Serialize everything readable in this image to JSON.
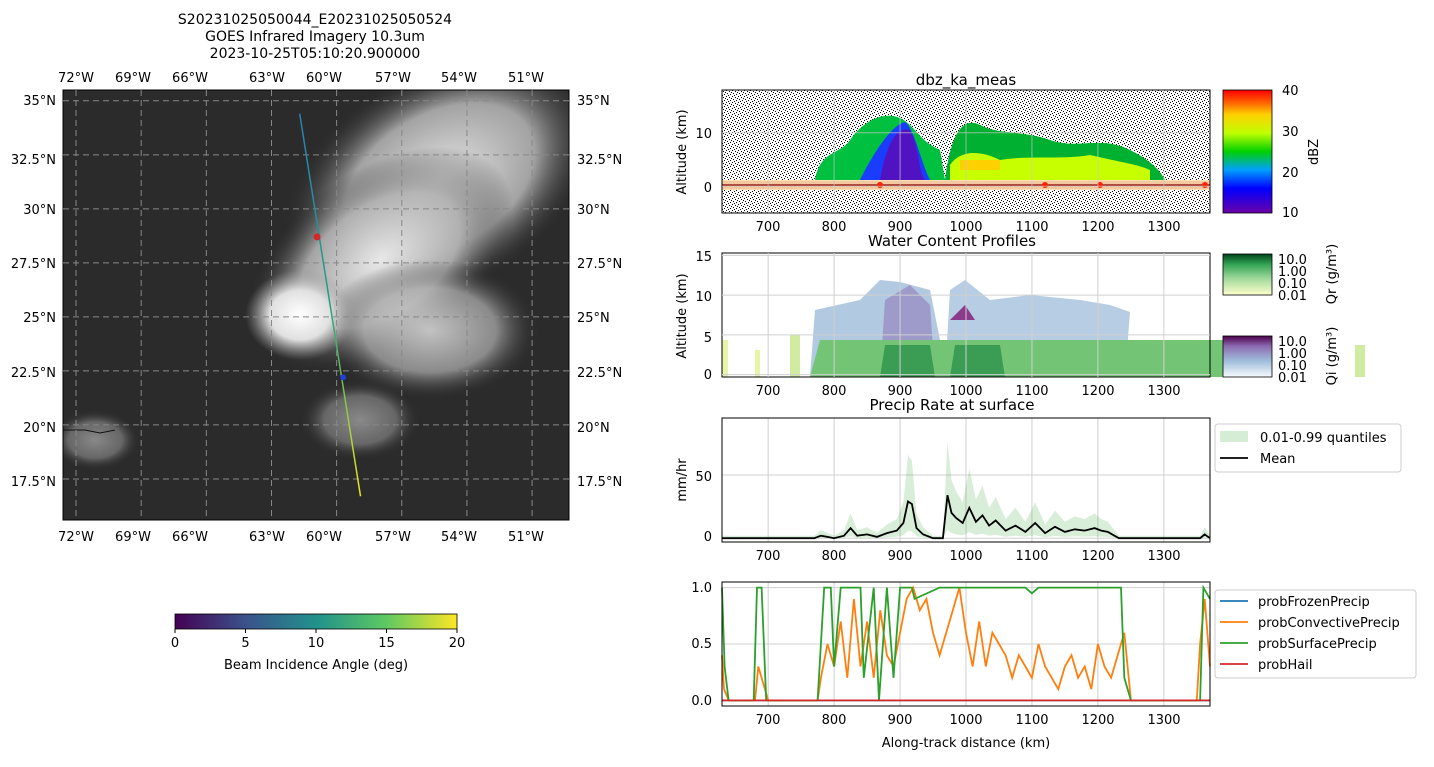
{
  "map": {
    "title_lines": [
      "S20231025050044_E20231025050524",
      "GOES Infrared Imagery 10.3um",
      "2023-10-25T05:10:20.900000"
    ],
    "lon_labels": [
      "72°W",
      "69°W",
      "66°W",
      "63°W",
      "60°W",
      "57°W",
      "54°W",
      "51°W"
    ],
    "lat_labels": [
      "35°N",
      "32.5°N",
      "30°N",
      "27.5°N",
      "25°N",
      "22.5°N",
      "20°N",
      "17.5°N"
    ],
    "colorbar_label": "Beam Incidence Angle (deg)",
    "colorbar_ticks": [
      "0",
      "5",
      "10",
      "15",
      "20"
    ],
    "track": {
      "start": {
        "lon": -61.7,
        "lat": 34.4
      },
      "end": {
        "lon": -58.9,
        "lat": 16.7
      }
    },
    "markers": [
      {
        "lon": -60.9,
        "lat": 28.7,
        "color": "#d62728"
      },
      {
        "lon": -59.7,
        "lat": 22.2,
        "color": "#1f3fd6"
      }
    ]
  },
  "chart_data": [
    {
      "type": "heatmap",
      "title": "dbz_ka_meas",
      "ylabel": "Altitude (km)",
      "xlim": [
        630,
        1370
      ],
      "ylim": [
        -5,
        18
      ],
      "xticks": [
        "700",
        "800",
        "900",
        "1000",
        "1100",
        "1200",
        "1300"
      ],
      "yticks": [
        "0",
        "10"
      ],
      "colorbar": {
        "label": "dBZ",
        "ticks": [
          "10",
          "20",
          "30",
          "40"
        ],
        "range": [
          10,
          40
        ]
      }
    },
    {
      "type": "heatmap",
      "title": "Water Content Profiles",
      "ylabel": "Altitude (km)",
      "xlim": [
        630,
        1370
      ],
      "ylim": [
        -0.3,
        15.3
      ],
      "xticks": [
        "700",
        "800",
        "900",
        "1000",
        "1100",
        "1200",
        "1300"
      ],
      "yticks": [
        "0",
        "5",
        "10",
        "15"
      ],
      "colorbars": [
        {
          "label": "Qr (g/m³)",
          "ticks": [
            "10.0",
            "1.00",
            "0.10",
            "0.01"
          ]
        },
        {
          "label": "Qi (g/m³)",
          "ticks": [
            "10.0",
            "1.00",
            "0.10",
            "0.01"
          ]
        }
      ]
    },
    {
      "type": "line",
      "title": "Precip Rate at surface",
      "ylabel": "mm/hr",
      "xlim": [
        630,
        1370
      ],
      "ylim": [
        -3,
        95
      ],
      "xticks": [
        "700",
        "800",
        "900",
        "1000",
        "1100",
        "1200",
        "1300"
      ],
      "yticks": [
        "0",
        "50"
      ],
      "legend": [
        "0.01-0.99 quantiles",
        "Mean"
      ],
      "series": [
        {
          "name": "Mean",
          "x": [
            630,
            700,
            770,
            780,
            790,
            800,
            815,
            825,
            835,
            850,
            865,
            880,
            895,
            905,
            912,
            918,
            925,
            935,
            950,
            965,
            972,
            978,
            985,
            995,
            1005,
            1015,
            1025,
            1035,
            1045,
            1060,
            1075,
            1090,
            1105,
            1120,
            1135,
            1150,
            1165,
            1180,
            1195,
            1205,
            1215,
            1225,
            1232,
            1240,
            1300,
            1355,
            1362,
            1370
          ],
          "y": [
            0,
            0,
            0,
            2,
            1,
            0,
            2,
            8,
            2,
            3,
            1,
            4,
            6,
            12,
            29,
            27,
            8,
            3,
            0,
            0,
            34,
            20,
            16,
            12,
            24,
            13,
            18,
            10,
            14,
            6,
            10,
            5,
            12,
            4,
            9,
            5,
            7,
            6,
            8,
            6,
            5,
            2,
            0,
            0,
            0,
            0,
            3,
            0
          ]
        }
      ]
    },
    {
      "type": "line",
      "xlabel": "Along-track distance (km)",
      "xlim": [
        630,
        1370
      ],
      "ylim": [
        -0.05,
        1.05
      ],
      "xticks": [
        "700",
        "800",
        "900",
        "1000",
        "1100",
        "1200",
        "1300"
      ],
      "yticks": [
        "0.0",
        "0.5",
        "1.0"
      ],
      "legend": [
        "probFrozenPrecip",
        "probConvectivePrecip",
        "probSurfacePrecip",
        "probHail"
      ],
      "series": [
        {
          "name": "probFrozenPrecip",
          "x": [
            630,
            1370
          ],
          "y": [
            0,
            0
          ]
        },
        {
          "name": "probConvectivePrecip",
          "x": [
            630,
            633,
            640,
            680,
            685,
            700,
            775,
            780,
            790,
            800,
            810,
            820,
            830,
            840,
            850,
            860,
            870,
            880,
            890,
            900,
            910,
            920,
            930,
            940,
            950,
            960,
            970,
            980,
            990,
            1000,
            1010,
            1020,
            1030,
            1040,
            1050,
            1060,
            1070,
            1080,
            1090,
            1100,
            1110,
            1120,
            1130,
            1140,
            1150,
            1160,
            1170,
            1180,
            1190,
            1200,
            1210,
            1220,
            1230,
            1240,
            1250,
            1260,
            1350,
            1355,
            1362,
            1370
          ],
          "y": [
            0.4,
            0.1,
            0,
            0,
            0.3,
            0,
            0,
            0.2,
            0.5,
            0.3,
            0.7,
            0.2,
            0.9,
            0.3,
            0.7,
            0.2,
            0.8,
            0.4,
            0.3,
            0.6,
            0.9,
            1.0,
            0.8,
            0.9,
            0.6,
            0.4,
            0.6,
            0.8,
            1.0,
            0.6,
            0.3,
            0.7,
            0.3,
            0.6,
            0.5,
            0.4,
            0.2,
            0.4,
            0.3,
            0.2,
            0.5,
            0.3,
            0.2,
            0.1,
            0.3,
            0.4,
            0.2,
            0.3,
            0.1,
            0.5,
            0.3,
            0.2,
            0.4,
            0.6,
            0,
            0,
            0,
            0.5,
            0.9,
            0.3
          ]
        },
        {
          "name": "probSurfacePrecip",
          "x": [
            630,
            634,
            640,
            678,
            683,
            690,
            697,
            775,
            780,
            785,
            795,
            800,
            810,
            820,
            840,
            845,
            860,
            868,
            880,
            890,
            900,
            918,
            922,
            960,
            965,
            1090,
            1100,
            1110,
            1235,
            1240,
            1250,
            1355,
            1360,
            1370
          ],
          "y": [
            1.0,
            0.3,
            0,
            0,
            1.0,
            1.0,
            0,
            0,
            0.5,
            1.0,
            1.0,
            0.3,
            1.0,
            1.0,
            1.0,
            0.2,
            1.0,
            0,
            1.0,
            0.2,
            1.0,
            1.0,
            0.9,
            1.0,
            1.0,
            1.0,
            0.95,
            1.0,
            1.0,
            0.2,
            0,
            0,
            1.0,
            0.9
          ]
        },
        {
          "name": "probHail",
          "x": [
            630,
            1370
          ],
          "y": [
            0,
            0
          ]
        }
      ]
    }
  ]
}
